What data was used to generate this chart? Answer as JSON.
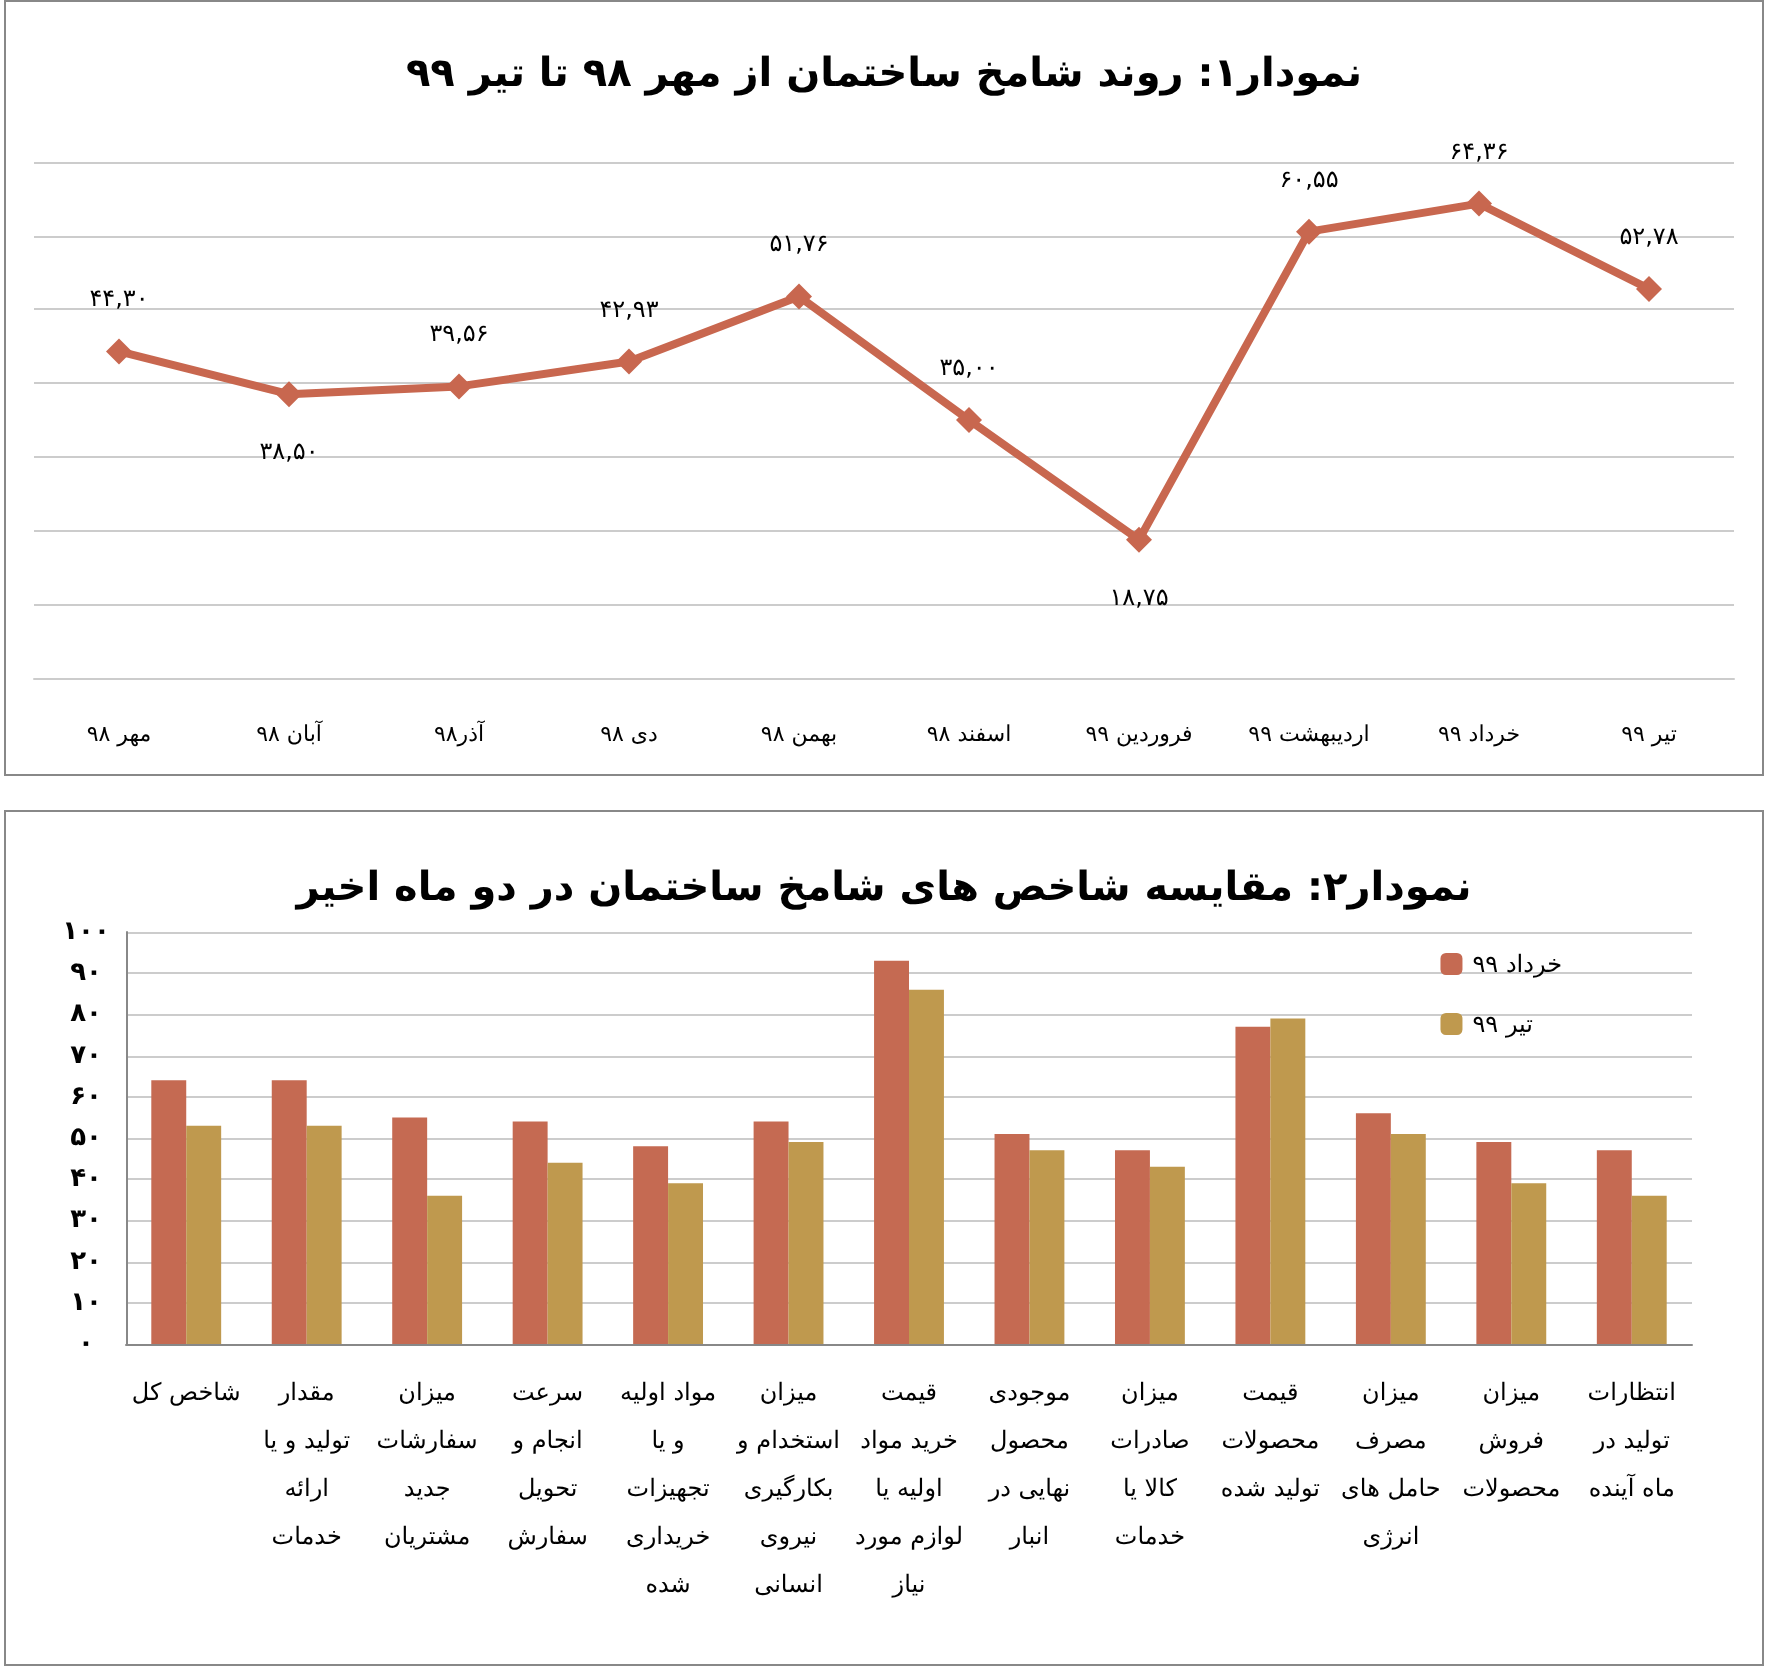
{
  "chart_data": [
    {
      "type": "line",
      "title": "نمودار۱: روند شامخ ساختمان از مهر ۹۸ تا تیر ۹۹",
      "categories": [
        "مهر ۹۸",
        "آبان ۹۸",
        "آذر۹۸",
        "دی ۹۸",
        "بهمن ۹۸",
        "اسفند ۹۸",
        "فروردین ۹۹",
        "اردیبهشت ۹۹",
        "خرداد ۹۹",
        "تیر ۹۹"
      ],
      "values": [
        44.3,
        38.5,
        39.56,
        42.93,
        51.76,
        35.0,
        18.75,
        60.55,
        64.36,
        52.78
      ],
      "value_labels": [
        "۴۴,۳۰",
        "۳۸,۵۰",
        "۳۹,۵۶",
        "۴۲,۹۳",
        "۵۱,۷۶",
        "۳۵,۰۰",
        "۱۸,۷۵",
        "۶۰,۵۵",
        "۶۴,۳۶",
        "۵۲,۷۸"
      ],
      "color": "#c8674f",
      "marker": "diamond",
      "ylim": [
        0,
        70
      ],
      "yticks": [
        {
          "value": 0,
          "label": null
        },
        {
          "value": 10,
          "label": null
        },
        {
          "value": 20,
          "label": null
        },
        {
          "value": 30,
          "label": null
        },
        {
          "value": 40,
          "label": null
        },
        {
          "value": 50,
          "label": null
        },
        {
          "value": 60,
          "label": null
        },
        {
          "value": 70,
          "label": null
        }
      ],
      "tick_labels": "x",
      "grid": "y"
    },
    {
      "type": "bar",
      "title": "نمودار۲: مقایسه شاخص های شامخ ساختمان در دو ماه اخیر",
      "categories": [
        "شاخص کل",
        "مقدار تولید و یا ارائه خدمات",
        "میزان سفارشات جدید مشتریان",
        "سرعت انجام و تحویل سفارش",
        "مواد اولیه و یا تجهیزات خریداری شده",
        "میزان استخدام و بکارگیری نیروی انسانی",
        "قیمت خرید مواد اولیه یا لوازم مورد نیاز",
        "موجودی محصول نهایی در انبار",
        "میزان صادرات کالا یا خدمات",
        "قیمت محصولات تولید شده",
        "میزان مصرف حامل های انرژی",
        "میزان فروش محصولات",
        "انتظارات تولید در ماه آینده"
      ],
      "series": [
        {
          "name": "خرداد ۹۹",
          "color": "#c56a52",
          "values": [
            64,
            64,
            55,
            54,
            48,
            54,
            93,
            51,
            47,
            77,
            56,
            49,
            47
          ]
        },
        {
          "name": "تیر ۹۹",
          "color": "#bf994e",
          "values": [
            53,
            53,
            36,
            44,
            39,
            49,
            86,
            47,
            43,
            79,
            51,
            39,
            36
          ]
        }
      ],
      "ylim": [
        0,
        100
      ],
      "yticks": [
        {
          "value": 0,
          "label": "۰"
        },
        {
          "value": 10,
          "label": "۱۰"
        },
        {
          "value": 20,
          "label": "۲۰"
        },
        {
          "value": 30,
          "label": "۳۰"
        },
        {
          "value": 40,
          "label": "۴۰"
        },
        {
          "value": 50,
          "label": "۵۰"
        },
        {
          "value": 60,
          "label": "۶۰"
        },
        {
          "value": 70,
          "label": "۷۰"
        },
        {
          "value": 80,
          "label": "۸۰"
        },
        {
          "value": 90,
          "label": "۹۰"
        },
        {
          "value": 100,
          "label": "۱۰۰"
        }
      ],
      "grid": "y",
      "legend": "top right"
    }
  ]
}
